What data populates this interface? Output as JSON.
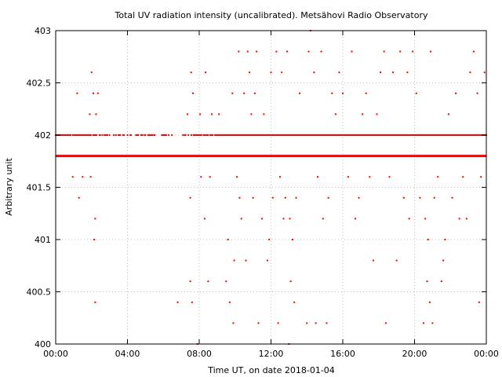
{
  "chart_data": {
    "type": "scatter",
    "title": "Total UV radiation intensity (uncalibrated). Metsähovi Radio Observatory",
    "xlabel": "Time UT, on date 2018-01-04",
    "ylabel": "Arbitrary unit",
    "xlim": [
      0,
      24
    ],
    "ylim": [
      400,
      403
    ],
    "x_ticks": [
      {
        "value": 0,
        "label": "00:00"
      },
      {
        "value": 4,
        "label": "04:00"
      },
      {
        "value": 8,
        "label": "08:00"
      },
      {
        "value": 12,
        "label": "12:00"
      },
      {
        "value": 16,
        "label": "16:00"
      },
      {
        "value": 20,
        "label": "20:00"
      },
      {
        "value": 24,
        "label": "00:00"
      }
    ],
    "y_ticks": [
      {
        "value": 400,
        "label": "400"
      },
      {
        "value": 400.5,
        "label": "400.5"
      },
      {
        "value": 401,
        "label": "401"
      },
      {
        "value": 401.5,
        "label": "401.5"
      },
      {
        "value": 402,
        "label": "402"
      },
      {
        "value": 402.5,
        "label": "402.5"
      },
      {
        "value": 403,
        "label": "403"
      }
    ],
    "grid": true,
    "marker_color": "#ff0000",
    "series": [
      {
        "baseline_value": 401.8,
        "baseline_x_range": [
          0,
          24
        ],
        "points": [
          [
            0.1,
            402
          ],
          [
            0.3,
            402
          ],
          [
            0.6,
            402
          ],
          [
            0.8,
            402
          ],
          [
            0.95,
            401.6
          ],
          [
            1.2,
            402.4
          ],
          [
            1.3,
            401.4
          ],
          [
            1.4,
            402
          ],
          [
            1.5,
            401.6
          ],
          [
            1.7,
            402
          ],
          [
            1.9,
            402.2
          ],
          [
            1.95,
            401.6
          ],
          [
            2.0,
            402.6
          ],
          [
            2.1,
            402.4
          ],
          [
            2.15,
            401
          ],
          [
            2.2,
            400.4
          ],
          [
            2.2,
            401.2
          ],
          [
            2.25,
            402.2
          ],
          [
            2.35,
            402.4
          ],
          [
            2.6,
            402
          ],
          [
            3.0,
            402
          ],
          [
            3.5,
            402
          ],
          [
            3.8,
            402
          ],
          [
            4.2,
            402
          ],
          [
            4.6,
            402
          ],
          [
            5.0,
            402
          ],
          [
            5.5,
            402
          ],
          [
            6.0,
            402
          ],
          [
            6.3,
            402
          ],
          [
            6.8,
            400.4
          ],
          [
            7.1,
            402
          ],
          [
            7.35,
            402.2
          ],
          [
            7.5,
            400.6
          ],
          [
            7.5,
            401.4
          ],
          [
            7.55,
            402.6
          ],
          [
            7.6,
            400.4
          ],
          [
            7.65,
            402.4
          ],
          [
            7.8,
            402
          ],
          [
            7.9,
            400
          ],
          [
            8.05,
            402.2
          ],
          [
            8.1,
            401.6
          ],
          [
            8.3,
            401.2
          ],
          [
            8.35,
            402.6
          ],
          [
            8.5,
            400.6
          ],
          [
            8.6,
            401.6
          ],
          [
            8.7,
            402.2
          ],
          [
            8.9,
            402
          ],
          [
            9.1,
            402.2
          ],
          [
            9.5,
            400.6
          ],
          [
            9.6,
            401
          ],
          [
            9.7,
            400.4
          ],
          [
            9.85,
            402.4
          ],
          [
            9.9,
            400.2
          ],
          [
            9.95,
            400.8
          ],
          [
            10.1,
            401.6
          ],
          [
            10.2,
            402.8
          ],
          [
            10.25,
            401.4
          ],
          [
            10.35,
            401.2
          ],
          [
            10.5,
            402.4
          ],
          [
            10.6,
            400.8
          ],
          [
            10.7,
            402.8
          ],
          [
            10.8,
            402.6
          ],
          [
            10.9,
            402.2
          ],
          [
            11.0,
            401.4
          ],
          [
            11.1,
            402.4
          ],
          [
            11.2,
            402.8
          ],
          [
            11.3,
            400.2
          ],
          [
            11.5,
            401.2
          ],
          [
            11.6,
            402.2
          ],
          [
            11.8,
            400.8
          ],
          [
            11.9,
            401
          ],
          [
            12.0,
            402.6
          ],
          [
            12.1,
            401.4
          ],
          [
            12.3,
            402.8
          ],
          [
            12.4,
            400.2
          ],
          [
            12.5,
            401.6
          ],
          [
            12.6,
            402.6
          ],
          [
            12.7,
            401.2
          ],
          [
            12.8,
            401.4
          ],
          [
            12.9,
            402.8
          ],
          [
            13.0,
            400
          ],
          [
            13.05,
            401.2
          ],
          [
            13.1,
            400.6
          ],
          [
            13.2,
            401
          ],
          [
            13.3,
            400.4
          ],
          [
            13.4,
            401.4
          ],
          [
            13.6,
            402.4
          ],
          [
            13.8,
            402
          ],
          [
            14.0,
            400.2
          ],
          [
            14.1,
            402.8
          ],
          [
            14.2,
            403
          ],
          [
            14.4,
            402.6
          ],
          [
            14.5,
            400.2
          ],
          [
            14.6,
            401.6
          ],
          [
            14.8,
            402.8
          ],
          [
            14.9,
            401.2
          ],
          [
            15.1,
            400.2
          ],
          [
            15.2,
            401.4
          ],
          [
            15.4,
            402.4
          ],
          [
            15.6,
            402.2
          ],
          [
            15.8,
            402.6
          ],
          [
            16.0,
            402.4
          ],
          [
            16.3,
            401.6
          ],
          [
            16.5,
            402.8
          ],
          [
            16.7,
            401.2
          ],
          [
            16.9,
            401.4
          ],
          [
            17.1,
            402.2
          ],
          [
            17.3,
            402.4
          ],
          [
            17.5,
            401.6
          ],
          [
            17.7,
            400.8
          ],
          [
            17.9,
            402.2
          ],
          [
            18.1,
            402.6
          ],
          [
            18.3,
            402.8
          ],
          [
            18.4,
            400.2
          ],
          [
            18.6,
            401.6
          ],
          [
            18.8,
            402.6
          ],
          [
            19.0,
            400.8
          ],
          [
            19.2,
            402.8
          ],
          [
            19.4,
            401.4
          ],
          [
            19.6,
            402.6
          ],
          [
            19.7,
            401.2
          ],
          [
            19.9,
            402.8
          ],
          [
            20.1,
            402.4
          ],
          [
            20.3,
            401.4
          ],
          [
            20.5,
            400.2
          ],
          [
            20.6,
            401.2
          ],
          [
            20.7,
            400.6
          ],
          [
            20.75,
            401
          ],
          [
            20.85,
            400.4
          ],
          [
            20.9,
            402.8
          ],
          [
            21.0,
            400.2
          ],
          [
            21.1,
            401.4
          ],
          [
            21.3,
            401.6
          ],
          [
            21.5,
            400.6
          ],
          [
            21.6,
            400.8
          ],
          [
            21.7,
            401
          ],
          [
            21.9,
            402.2
          ],
          [
            22.1,
            401.4
          ],
          [
            22.3,
            402.4
          ],
          [
            22.5,
            401.2
          ],
          [
            22.7,
            401.6
          ],
          [
            22.9,
            401.2
          ],
          [
            23.1,
            402.6
          ],
          [
            23.3,
            402.8
          ],
          [
            23.5,
            402.4
          ],
          [
            23.6,
            400.4
          ],
          [
            23.7,
            401.6
          ],
          [
            23.9,
            402.6
          ]
        ],
        "secondary_band_value": 402,
        "secondary_band_density": [
          [
            0.0,
            0.9
          ],
          [
            1.2,
            0.6
          ],
          [
            2.5,
            0.3
          ],
          [
            4.0,
            0.2
          ],
          [
            7.0,
            0.5
          ],
          [
            9.0,
            0.8
          ],
          [
            10.0,
            1.0
          ],
          [
            24.0,
            1.0
          ]
        ]
      }
    ]
  }
}
